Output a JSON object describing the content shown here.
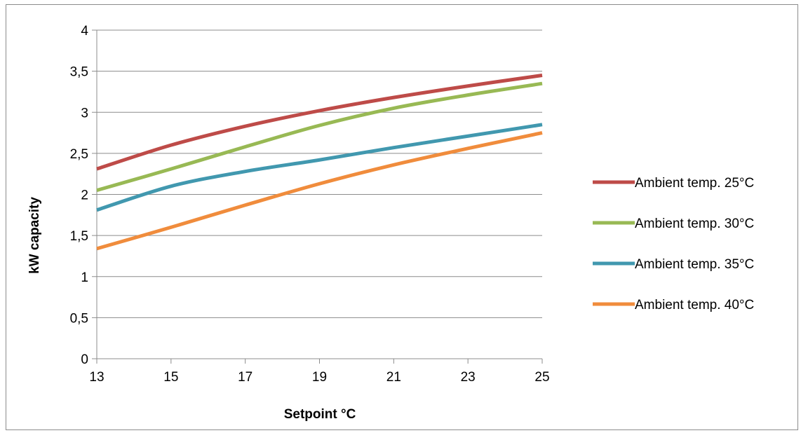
{
  "chart_data": {
    "type": "line",
    "title": "",
    "xlabel": "Setpoint  °C",
    "ylabel": "kW capacity",
    "xlim": [
      13,
      25
    ],
    "ylim": [
      0,
      4
    ],
    "x_ticks": [
      13,
      15,
      17,
      19,
      21,
      23,
      25
    ],
    "y_ticks": [
      0,
      0.5,
      1,
      1.5,
      2,
      2.5,
      3,
      3.5,
      4
    ],
    "x_tick_labels": [
      "13",
      "15",
      "17",
      "19",
      "21",
      "23",
      "25"
    ],
    "y_tick_labels": [
      "0",
      "0,5",
      "1",
      "1,5",
      "2",
      "2,5",
      "3",
      "3,5",
      "4"
    ],
    "grid": "horizontal",
    "legend_position": "right",
    "series": [
      {
        "name": "Ambient temp. 25°C",
        "color": "#be4b48",
        "x": [
          13,
          15,
          17,
          19,
          21,
          23,
          25
        ],
        "y": [
          2.31,
          2.6,
          2.83,
          3.02,
          3.18,
          3.32,
          3.45
        ]
      },
      {
        "name": "Ambient temp. 30°C",
        "color": "#98b954",
        "x": [
          13,
          15,
          17,
          19,
          21,
          23,
          25
        ],
        "y": [
          2.05,
          2.31,
          2.58,
          2.84,
          3.05,
          3.21,
          3.35
        ]
      },
      {
        "name": "Ambient temp. 35°C",
        "color": "#4198af",
        "x": [
          13,
          15,
          17,
          19,
          21,
          23,
          25
        ],
        "y": [
          1.81,
          2.1,
          2.28,
          2.42,
          2.57,
          2.71,
          2.85
        ]
      },
      {
        "name": "Ambient temp. 40°C",
        "color": "#f08c3c",
        "x": [
          13,
          15,
          17,
          19,
          21,
          23,
          25
        ],
        "y": [
          1.34,
          1.6,
          1.87,
          2.13,
          2.36,
          2.56,
          2.75
        ]
      }
    ]
  }
}
